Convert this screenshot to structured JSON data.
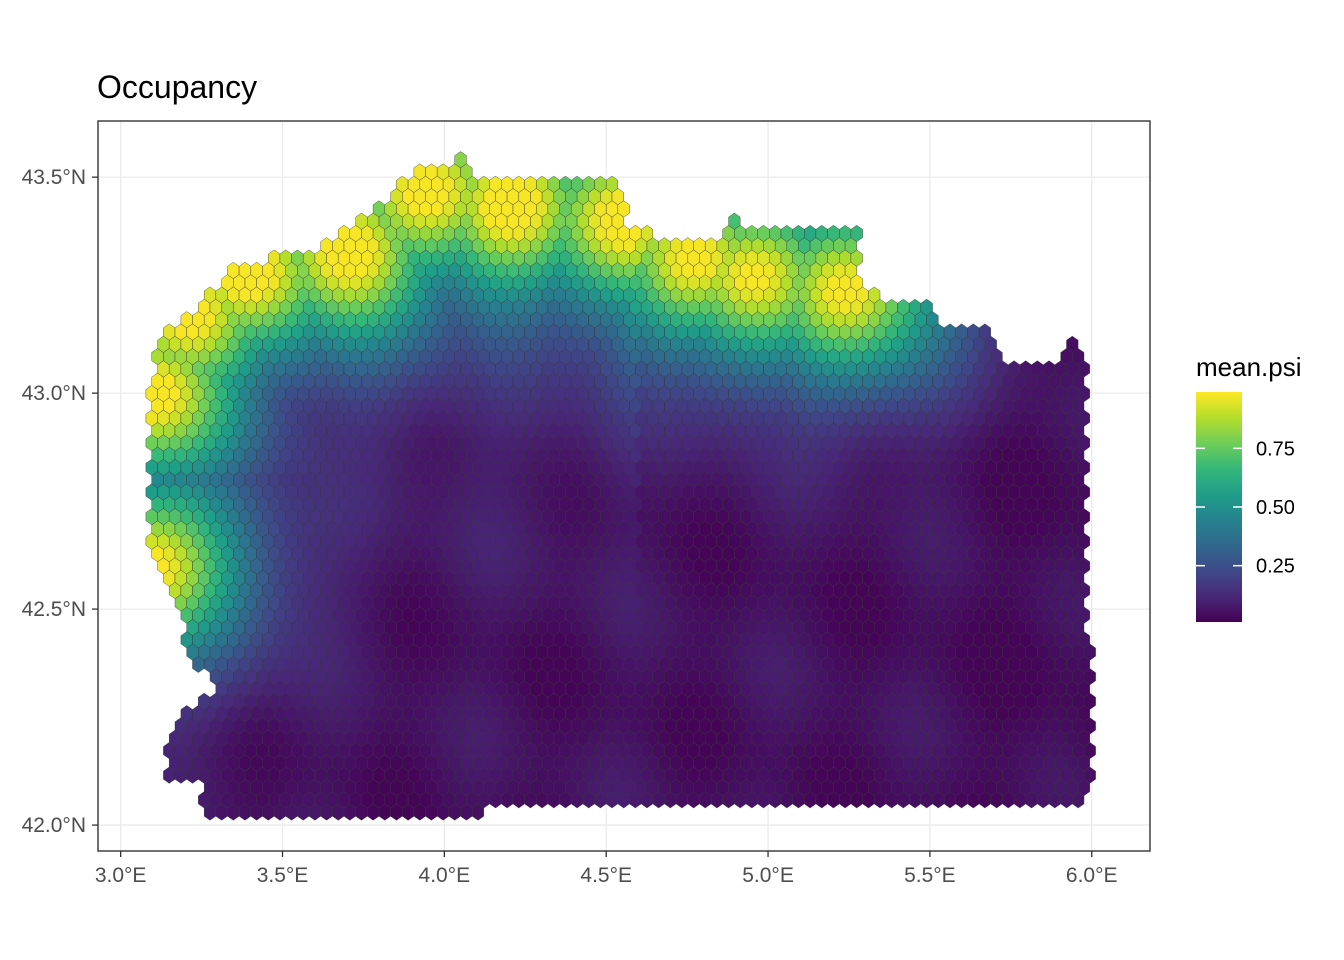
{
  "chart_data": {
    "type": "heatmap",
    "subtype": "hexagonal-grid-map",
    "title": "Occupancy",
    "xlabel": "",
    "ylabel": "",
    "x_ticks": [
      "3.0°E",
      "3.5°E",
      "4.0°E",
      "4.5°E",
      "5.0°E",
      "5.5°E",
      "6.0°E"
    ],
    "x_tick_values": [
      3.0,
      3.5,
      4.0,
      4.5,
      5.0,
      5.5,
      6.0
    ],
    "y_ticks": [
      "43.5°N",
      "43.0°N",
      "42.5°N",
      "42.0°N"
    ],
    "y_tick_values": [
      43.5,
      43.0,
      42.5,
      42.0
    ],
    "xlim": [
      2.93,
      6.18
    ],
    "ylim": [
      41.94,
      43.63
    ],
    "grid": true,
    "legend": {
      "title": "mean.psi",
      "placement": "right",
      "breaks": [
        0.75,
        0.5,
        0.25
      ],
      "break_labels": [
        "0.75",
        "0.50",
        "0.25"
      ],
      "range": [
        0.0,
        1.0
      ],
      "colormap": "viridis"
    },
    "colors": {
      "viridis_stops": [
        "#440154",
        "#482878",
        "#3e4989",
        "#31688e",
        "#26828e",
        "#1f9e89",
        "#35b779",
        "#6ece58",
        "#b5de2b",
        "#fde725"
      ],
      "hex_border": "#333333",
      "grid": "#ebebeb",
      "panel_border": "#333333"
    },
    "hex_grid": {
      "cell_width_deg": 0.036,
      "cell_height_deg": 0.038,
      "notes_domain": "coastal rows near top-left (~43.0-43.5N) have high occupancy (~0.9-1.0), decreasing southward/eastward to ~0.05 in the southeast"
    }
  }
}
